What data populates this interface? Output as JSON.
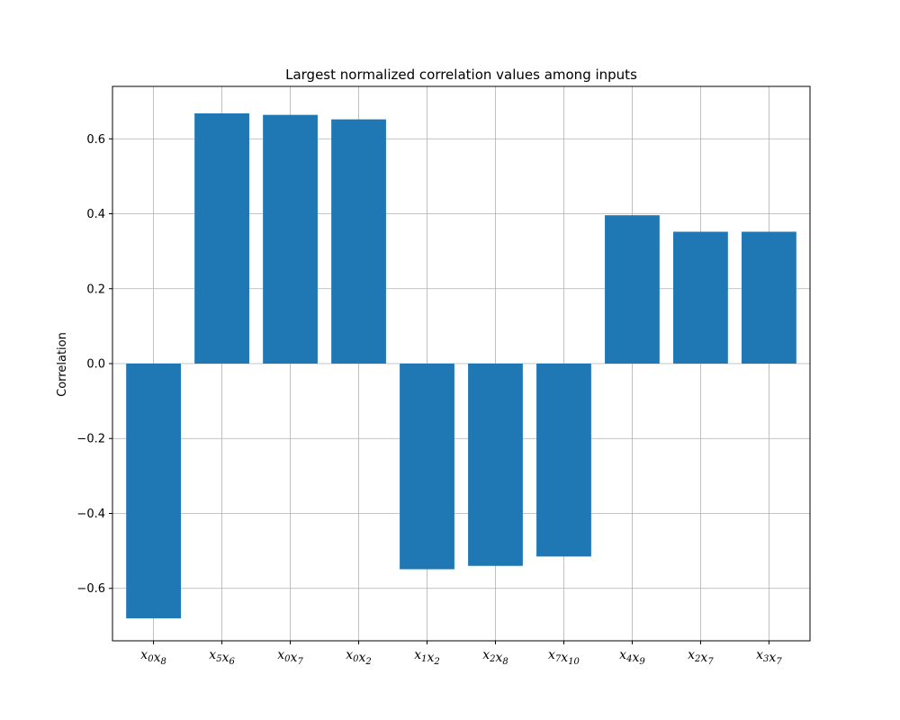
{
  "chart_data": {
    "type": "bar",
    "title": "Largest normalized correlation values among inputs",
    "xlabel": "",
    "ylabel": "Correlation",
    "ylim": [
      -0.74,
      0.74
    ],
    "yticks": [
      -0.6,
      -0.4,
      -0.2,
      0.0,
      0.2,
      0.4,
      0.6
    ],
    "ytick_labels": [
      "−0.6",
      "−0.4",
      "−0.2",
      "0.0",
      "0.2",
      "0.4",
      "0.6"
    ],
    "grid": true,
    "bar_color": "#1f77b4",
    "categories": [
      {
        "label": "x0x8",
        "parts": [
          [
            "x",
            "0"
          ],
          [
            "x",
            "8"
          ]
        ]
      },
      {
        "label": "x5x6",
        "parts": [
          [
            "x",
            "5"
          ],
          [
            "x",
            "6"
          ]
        ]
      },
      {
        "label": "x0x7",
        "parts": [
          [
            "x",
            "0"
          ],
          [
            "x",
            "7"
          ]
        ]
      },
      {
        "label": "x0x2",
        "parts": [
          [
            "x",
            "0"
          ],
          [
            "x",
            "2"
          ]
        ]
      },
      {
        "label": "x1x2",
        "parts": [
          [
            "x",
            "1"
          ],
          [
            "x",
            "2"
          ]
        ]
      },
      {
        "label": "x2x8",
        "parts": [
          [
            "x",
            "2"
          ],
          [
            "x",
            "8"
          ]
        ]
      },
      {
        "label": "x7x10",
        "parts": [
          [
            "x",
            "7"
          ],
          [
            "x",
            "10"
          ]
        ]
      },
      {
        "label": "x4x9",
        "parts": [
          [
            "x",
            "4"
          ],
          [
            "x",
            "9"
          ]
        ]
      },
      {
        "label": "x2x7",
        "parts": [
          [
            "x",
            "2"
          ],
          [
            "x",
            "7"
          ]
        ]
      },
      {
        "label": "x3x7",
        "parts": [
          [
            "x",
            "3"
          ],
          [
            "x",
            "7"
          ]
        ]
      }
    ],
    "values": [
      -0.68,
      0.668,
      0.664,
      0.652,
      -0.549,
      -0.54,
      -0.515,
      0.396,
      0.352,
      0.352
    ]
  }
}
